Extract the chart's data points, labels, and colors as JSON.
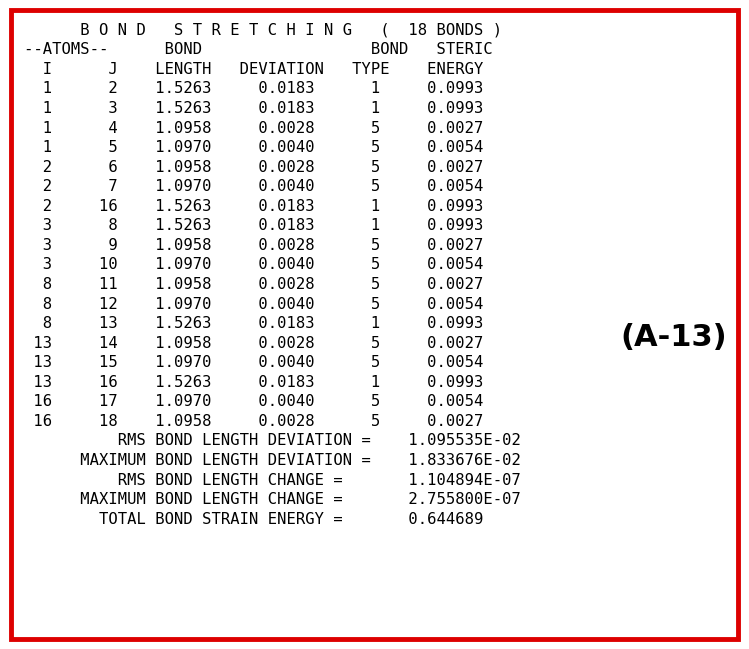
{
  "lines": [
    "      B O N D   S T R E T C H I N G   (  18 BONDS )",
    "--ATOMS--      BOND                  BOND   STERIC",
    "  I      J    LENGTH   DEVIATION   TYPE    ENERGY",
    "  1      2    1.5263     0.0183      1     0.0993",
    "  1      3    1.5263     0.0183      1     0.0993",
    "  1      4    1.0958     0.0028      5     0.0027",
    "  1      5    1.0970     0.0040      5     0.0054",
    "  2      6    1.0958     0.0028      5     0.0027",
    "  2      7    1.0970     0.0040      5     0.0054",
    "  2     16    1.5263     0.0183      1     0.0993",
    "  3      8    1.5263     0.0183      1     0.0993",
    "  3      9    1.0958     0.0028      5     0.0027",
    "  3     10    1.0970     0.0040      5     0.0054",
    "  8     11    1.0958     0.0028      5     0.0027",
    "  8     12    1.0970     0.0040      5     0.0054",
    "  8     13    1.5263     0.0183      1     0.0993",
    " 13     14    1.0958     0.0028      5     0.0027",
    " 13     15    1.0970     0.0040      5     0.0054",
    " 13     16    1.5263     0.0183      1     0.0993",
    " 16     17    1.0970     0.0040      5     0.0054",
    " 16     18    1.0958     0.0028      5     0.0027",
    "          RMS BOND LENGTH DEVIATION =    1.095535E-02",
    "      MAXIMUM BOND LENGTH DEVIATION =    1.833676E-02",
    "          RMS BOND LENGTH CHANGE =       1.104894E-07",
    "      MAXIMUM BOND LENGTH CHANGE =       2.755800E-07",
    "        TOTAL BOND STRAIN ENERGY =       0.644689"
  ],
  "label": "(A-13)",
  "bg_color": "#ffffff",
  "border_color": "#dd0000",
  "text_color": "#000000",
  "font_size": 11.2,
  "label_font_size": 22
}
